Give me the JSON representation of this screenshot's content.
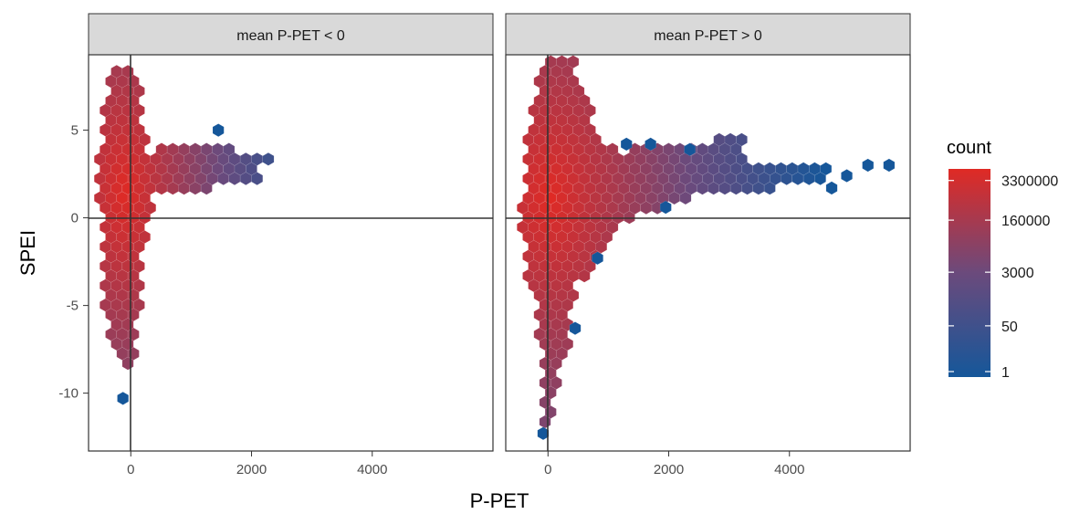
{
  "chart_data": {
    "type": "hexbin",
    "xlabel": "P-PET",
    "ylabel": "SPEI",
    "xlim": [
      -700,
      6000
    ],
    "ylim": [
      -13.3,
      9.3
    ],
    "x_ticks": [
      0,
      2000,
      4000
    ],
    "y_ticks": [
      5,
      0,
      -5,
      -10
    ],
    "reference_lines": {
      "x": 0,
      "y": 0
    },
    "hex_size": 0.37,
    "legend": {
      "title": "count",
      "scale": "log",
      "breaks": [
        "3300000",
        "160000",
        "3000",
        "50",
        "1"
      ],
      "break_values": [
        3300000,
        160000,
        3000,
        50,
        1
      ],
      "min": 1,
      "max": 8000000,
      "color_low": "#15579a",
      "color_mid": "#6b4a7c",
      "color_high": "#e02a24"
    },
    "panels": [
      {
        "label": "mean P-PET < 0",
        "core": [
          {
            "y": 8,
            "x0": -270,
            "x1": 60
          },
          {
            "y": 7,
            "x0": -370,
            "x1": 100
          },
          {
            "y": 6,
            "x0": -400,
            "x1": 140
          },
          {
            "y": 5,
            "x0": -430,
            "x1": 180
          },
          {
            "y": 4,
            "x0": -440,
            "x1": 250
          },
          {
            "y": 3,
            "x0": -470,
            "x1": 430
          },
          {
            "y": 2,
            "x0": -470,
            "x1": 420
          },
          {
            "y": 1,
            "x0": -470,
            "x1": 320
          },
          {
            "y": 0,
            "x0": -450,
            "x1": 220
          },
          {
            "y": -1,
            "x0": -450,
            "x1": 180
          },
          {
            "y": -2,
            "x0": -440,
            "x1": 140
          },
          {
            "y": -3,
            "x0": -420,
            "x1": 120
          },
          {
            "y": -4,
            "x0": -400,
            "x1": 100
          },
          {
            "y": -5,
            "x0": -380,
            "x1": 90
          },
          {
            "y": -6,
            "x0": -340,
            "x1": 70
          },
          {
            "y": -7,
            "x0": -280,
            "x1": 40
          },
          {
            "y": -8,
            "x0": -170,
            "x1": 10
          }
        ],
        "arm": [
          {
            "y": 3.3,
            "x0": 300,
            "x1": 2400
          },
          {
            "y": 2.5,
            "x0": 280,
            "x1": 2150
          },
          {
            "y": 3.8,
            "x0": 350,
            "x1": 1700
          },
          {
            "y": 1.8,
            "x0": 300,
            "x1": 1350
          }
        ],
        "peak": {
          "x": -100,
          "y": 1.5
        },
        "log_peak": 6.9,
        "fall_x": 620,
        "fall_y": 5.6,
        "isolated": [
          {
            "x": 1450,
            "y": 5.0
          },
          {
            "x": -130,
            "y": -10.3
          }
        ]
      },
      {
        "label": "mean P-PET > 0",
        "core": [
          {
            "y": 8.3,
            "x0": -60,
            "x1": 420
          },
          {
            "y": 7.5,
            "x0": -120,
            "x1": 600
          },
          {
            "y": 6.5,
            "x0": -250,
            "x1": 650
          },
          {
            "y": 5.5,
            "x0": -250,
            "x1": 700
          },
          {
            "y": 4.5,
            "x0": -280,
            "x1": 830
          },
          {
            "y": 3.5,
            "x0": -300,
            "x1": 1200
          },
          {
            "y": 2.5,
            "x0": -340,
            "x1": 2800
          },
          {
            "y": 1.5,
            "x0": -340,
            "x1": 2600
          },
          {
            "y": 0.5,
            "x0": -380,
            "x1": 1700
          },
          {
            "y": -0.5,
            "x0": -380,
            "x1": 1200
          },
          {
            "y": -1.5,
            "x0": -330,
            "x1": 1000
          },
          {
            "y": -2.5,
            "x0": -340,
            "x1": 850
          },
          {
            "y": -3.5,
            "x0": -300,
            "x1": 500
          },
          {
            "y": -4.5,
            "x0": -200,
            "x1": 350
          },
          {
            "y": -5.5,
            "x0": -150,
            "x1": 350
          },
          {
            "y": -6.5,
            "x0": -100,
            "x1": 300
          },
          {
            "y": -7.5,
            "x0": -60,
            "x1": 300
          },
          {
            "y": -8.5,
            "x0": -30,
            "x1": 120
          },
          {
            "y": -9.5,
            "x0": -40,
            "x1": 80
          },
          {
            "y": -10.5,
            "x0": -40,
            "x1": 60
          },
          {
            "y": -11.3,
            "x0": 0,
            "x1": 30
          }
        ],
        "arm": [
          {
            "y": 2.2,
            "x0": 600,
            "x1": 4600
          },
          {
            "y": 2.9,
            "x0": 700,
            "x1": 4700
          },
          {
            "y": 3.6,
            "x0": 1300,
            "x1": 3300
          },
          {
            "y": 1.5,
            "x0": 700,
            "x1": 3800
          },
          {
            "y": 4.2,
            "x0": 2800,
            "x1": 3300
          }
        ],
        "peak": {
          "x": 30,
          "y": 1.2
        },
        "log_peak": 6.9,
        "fall_x": 900,
        "fall_y": 6.0,
        "isolated": [
          {
            "x": -80,
            "y": -12.3
          },
          {
            "x": 4950,
            "y": 2.4
          },
          {
            "x": 5300,
            "y": 3.0
          },
          {
            "x": 5650,
            "y": 3.0
          },
          {
            "x": 4700,
            "y": 1.7
          },
          {
            "x": 1950,
            "y": 0.6
          },
          {
            "x": 820,
            "y": -2.3
          },
          {
            "x": 450,
            "y": -6.3
          },
          {
            "x": 1300,
            "y": 4.2
          },
          {
            "x": 1700,
            "y": 4.2
          },
          {
            "x": 2350,
            "y": 3.9
          }
        ]
      }
    ]
  }
}
